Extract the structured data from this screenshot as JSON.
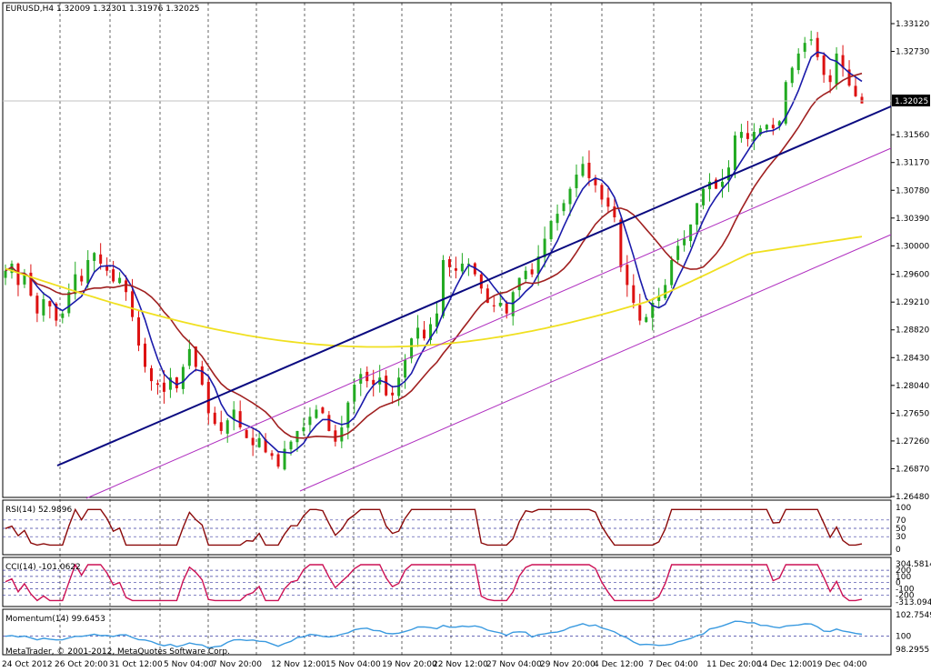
{
  "header": {
    "text": "EURUSD,H4  1.32009 1.32301 1.31976 1.32025"
  },
  "price_panel": {
    "current_price_label": "1.32025",
    "y_ticks": [
      "1.33120",
      "1.32730",
      "1.31560",
      "1.31170",
      "1.30780",
      "1.30390",
      "1.30000",
      "1.29600",
      "1.29210",
      "1.28820",
      "1.28430",
      "1.28040",
      "1.27650",
      "1.27260",
      "1.26870",
      "1.26480"
    ]
  },
  "rsi_panel": {
    "title": "RSI(14) 52.9896",
    "y_ticks": [
      "100",
      "70",
      "50",
      "30",
      "0"
    ]
  },
  "cci_panel": {
    "title": "CCI(14) -101.0622",
    "y_ticks": [
      "304.5814",
      "200",
      "100",
      "0",
      "-100",
      "-200",
      "-313.0944"
    ]
  },
  "momentum_panel": {
    "title": "Momentum(14) 99.6453",
    "y_ticks": [
      "102.7549",
      "100",
      "98.2955"
    ]
  },
  "copyright": "MetaTrader, © 2001-2012, MetaQuotes Software Corp.",
  "x_ticks": [
    "24 Oct 2012",
    "26 Oct 20:00",
    "31 Oct 12:00",
    "5 Nov 04:00",
    "7 Nov 20:00",
    "12 Nov 12:00",
    "15 Nov 04:00",
    "19 Nov 20:00",
    "22 Nov 12:00",
    "27 Nov 04:00",
    "29 Nov 20:00",
    "4 Dec 12:00",
    "7 Dec 04:00",
    "11 Dec 20:00",
    "14 Dec 12:00",
    "19 Dec 04:00"
  ],
  "colors": {
    "bull": "#22aa22",
    "bear": "#dd1111",
    "ma_fast": "#1a1aaa",
    "ma_mid": "#a02020",
    "ma_slow": "#f0e020",
    "trend_main": "#0a0a80",
    "channel": "#b030c0",
    "rsi": "#8b0a0a",
    "cci": "#cc1155",
    "momentum": "#3a9ae0"
  },
  "chart_data": [
    {
      "type": "candlestick",
      "title": "EURUSD,H4",
      "open": 1.32009,
      "high": 1.32301,
      "low": 1.31976,
      "close": 1.32025,
      "ylim": [
        1.2648,
        1.3351
      ],
      "close_path": [
        1.2965,
        1.2975,
        1.2945,
        1.296,
        1.293,
        1.2905,
        1.2925,
        1.2915,
        1.2895,
        1.2905,
        1.2935,
        1.296,
        1.295,
        1.298,
        1.299,
        1.2975,
        1.2965,
        1.295,
        1.2955,
        1.2935,
        1.29,
        1.286,
        1.283,
        1.281,
        1.2805,
        1.2795,
        1.2815,
        1.28,
        1.283,
        1.2855,
        1.283,
        1.2805,
        1.2765,
        1.275,
        1.274,
        1.2755,
        1.277,
        1.2745,
        1.273,
        1.272,
        1.273,
        1.271,
        1.2705,
        1.269,
        1.2715,
        1.2725,
        1.274,
        1.2745,
        1.276,
        1.277,
        1.2765,
        1.274,
        1.2725,
        1.2745,
        1.278,
        1.2805,
        1.282,
        1.281,
        1.2805,
        1.2815,
        1.279,
        1.279,
        1.2815,
        1.284,
        1.287,
        1.2885,
        1.287,
        1.289,
        1.2905,
        1.298,
        1.297,
        1.2965,
        1.2975,
        1.2975,
        1.296,
        1.294,
        1.292,
        1.2915,
        1.292,
        1.2905,
        1.2935,
        1.2955,
        1.2965,
        1.296,
        1.2985,
        1.301,
        1.3035,
        1.3045,
        1.306,
        1.308,
        1.31,
        1.3115,
        1.3095,
        1.3085,
        1.3065,
        1.3055,
        1.304,
        1.297,
        1.2945,
        1.292,
        1.2895,
        1.29,
        1.292,
        1.293,
        1.2945,
        1.298,
        1.3,
        1.301,
        1.303,
        1.306,
        1.308,
        1.309,
        1.308,
        1.309,
        1.311,
        1.3155,
        1.316,
        1.315,
        1.316,
        1.3165,
        1.317,
        1.3165,
        1.3175,
        1.323,
        1.325,
        1.327,
        1.3285,
        1.329,
        1.3265,
        1.324,
        1.323,
        1.327,
        1.325,
        1.3225,
        1.321,
        1.32
      ]
    },
    {
      "type": "line",
      "title": "RSI(14) 52.9896",
      "ylim": [
        0,
        100
      ],
      "levels": [
        70,
        50,
        30
      ]
    },
    {
      "type": "line",
      "title": "CCI(14) -101.0622",
      "ylim": [
        -313.0944,
        304.5814
      ],
      "levels": [
        200,
        100,
        0,
        -100,
        -200
      ]
    },
    {
      "type": "line",
      "title": "Momentum(14) 99.6453",
      "ylim": [
        98.2955,
        102.7549
      ],
      "levels": [
        100
      ]
    }
  ]
}
